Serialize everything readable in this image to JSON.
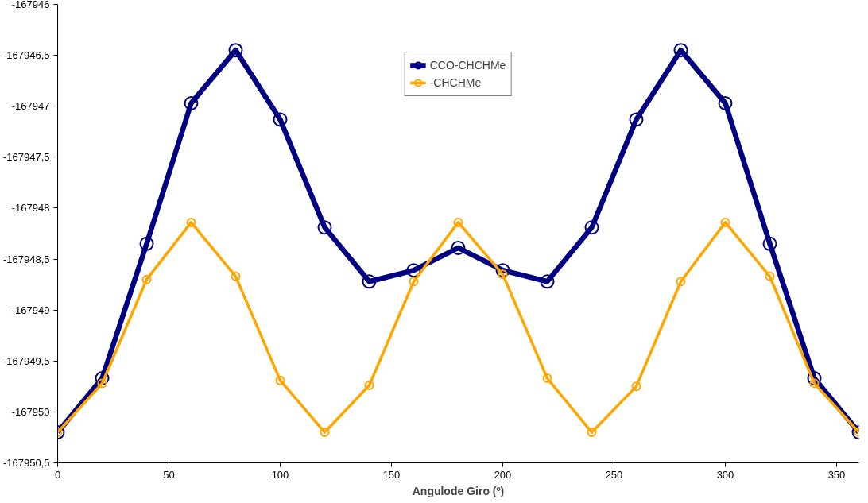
{
  "chart_data": {
    "type": "line",
    "xlabel": "Angulode Giro (º)",
    "x": [
      0,
      20,
      40,
      60,
      80,
      100,
      120,
      140,
      160,
      180,
      200,
      220,
      240,
      260,
      280,
      300,
      320,
      340,
      360
    ],
    "series": [
      {
        "name": "CCO-CHCHMe",
        "color": "#000080",
        "values": [
          -167950.2,
          -167949.67,
          -167948.35,
          -167946.97,
          -167946.45,
          -167947.13,
          -167948.19,
          -167948.72,
          -167948.61,
          -167948.39,
          -167948.61,
          -167948.72,
          -167948.19,
          -167947.13,
          -167946.45,
          -167946.97,
          -167948.35,
          -167949.67,
          -167950.2
        ]
      },
      {
        "name": "-CHCHMe",
        "color": "#ffa500",
        "values": [
          -167950.2,
          -167949.72,
          -167948.7,
          -167948.14,
          -167948.67,
          -167949.69,
          -167950.2,
          -167949.74,
          -167948.72,
          -167948.14,
          -167948.65,
          -167949.67,
          -167950.2,
          -167949.75,
          -167948.72,
          -167948.14,
          -167948.67,
          -167949.72,
          -167950.2
        ]
      }
    ],
    "xlim": [
      0,
      360
    ],
    "xticks": [
      0,
      50,
      100,
      150,
      200,
      250,
      300,
      350
    ],
    "ylim": [
      -167950.5,
      -167946
    ],
    "yticks": [
      {
        "value": -167950.5,
        "label": "-167950,5"
      },
      {
        "value": -167950,
        "label": "-167950"
      },
      {
        "value": -167949.5,
        "label": "-167949,5"
      },
      {
        "value": -167949,
        "label": "-167949"
      },
      {
        "value": -167948.5,
        "label": "-167948,5"
      },
      {
        "value": -167948,
        "label": "-167948"
      },
      {
        "value": -167947.5,
        "label": "-167947,5"
      },
      {
        "value": -167947,
        "label": "-167947"
      },
      {
        "value": -167946.5,
        "label": "-167946,5"
      },
      {
        "value": -167946,
        "label": "-167946"
      }
    ],
    "grid": false,
    "legend": "top",
    "marker": "circle",
    "line_style": "solid"
  }
}
